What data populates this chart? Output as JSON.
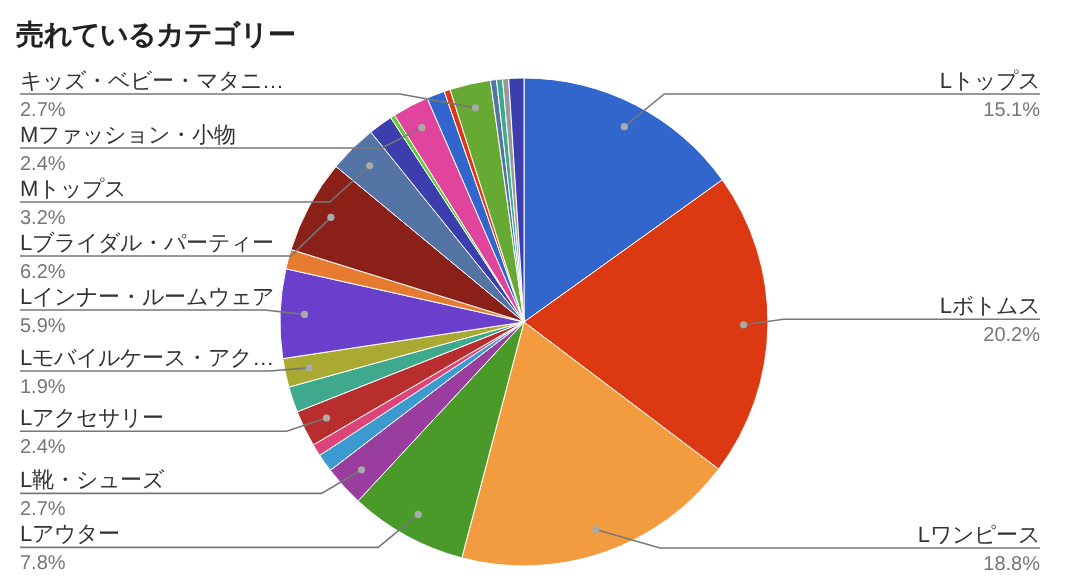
{
  "chart_data": {
    "type": "pie",
    "title": "売れているカテゴリー",
    "categories": [
      "Lトップス",
      "Lボトムス",
      "Lワンピース",
      "Lアウター",
      "L靴・シューズ",
      null,
      null,
      "Lアクセサリー",
      null,
      "Lモバイルケース・アク…",
      "Lインナー・ルームウェア",
      null,
      "Lブライダル・パーティー",
      "Mトップス",
      null,
      null,
      "Mファッション・小物",
      null,
      null,
      "キッズ・ベビー・マタニ…",
      null,
      null,
      null,
      null
    ],
    "values": [
      15.1,
      20.2,
      18.8,
      7.8,
      2.7,
      1.2,
      0.8,
      2.4,
      1.7,
      1.9,
      5.9,
      1.3,
      6.2,
      3.2,
      1.6,
      0.3,
      2.4,
      1.2,
      0.4,
      2.7,
      0.4,
      0.4,
      0.4,
      1.0
    ],
    "value_labels": [
      "15.1%",
      "20.2%",
      "18.8%",
      "7.8%",
      "2.7%",
      null,
      null,
      "2.4%",
      null,
      "1.9%",
      "5.9%",
      null,
      "6.2%",
      "3.2%",
      null,
      null,
      "2.4%",
      null,
      null,
      "2.7%",
      null,
      null,
      null,
      null
    ],
    "colors": [
      "#3366cc",
      "#dc3912",
      "#f29c3f",
      "#4a9a2a",
      "#993d9e",
      "#3b9ad0",
      "#dd4477",
      "#b82e2e",
      "#3fa98e",
      "#aaaa33",
      "#6a3fcc",
      "#e67a2e",
      "#8b2018",
      "#5574a6",
      "#3b3eac",
      "#66cc33",
      "#e0449c",
      "#3366cc",
      "#dc3912",
      "#66aa33",
      "#5574a6",
      "#3fa98e",
      "#999999",
      "#3b3eac"
    ]
  }
}
